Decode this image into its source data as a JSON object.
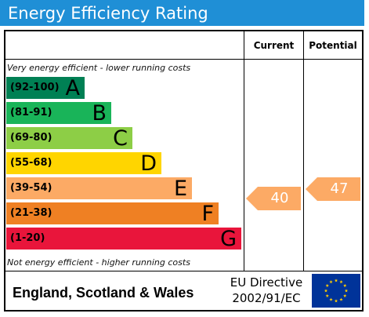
{
  "header": {
    "title": "Energy Efficiency Rating"
  },
  "columns": {
    "current": "Current",
    "potential": "Potential"
  },
  "notes": {
    "top": "Very energy efficient - lower running costs",
    "bottom": "Not energy efficient - higher running costs"
  },
  "bands": [
    {
      "range": "(92-100)",
      "letter": "A",
      "color": "#008054"
    },
    {
      "range": "(81-91)",
      "letter": "B",
      "color": "#19b459"
    },
    {
      "range": "(69-80)",
      "letter": "C",
      "color": "#8dce46"
    },
    {
      "range": "(55-68)",
      "letter": "D",
      "color": "#ffd500"
    },
    {
      "range": "(39-54)",
      "letter": "E",
      "color": "#fcaa65"
    },
    {
      "range": "(21-38)",
      "letter": "F",
      "color": "#ef8023"
    },
    {
      "range": "(1-20)",
      "letter": "G",
      "color": "#e9153b"
    }
  ],
  "ratings": {
    "current": {
      "value": "40",
      "band": "E",
      "color": "#fcaa65"
    },
    "potential": {
      "value": "47",
      "band": "E",
      "color": "#fcaa65"
    }
  },
  "footer": {
    "country": "England, Scotland & Wales",
    "directive_line1": "EU Directive",
    "directive_line2": "2002/91/EC",
    "flag_icon": "eu-flag-icon",
    "flag_color": "#003399",
    "star_color": "#ffcc00"
  }
}
